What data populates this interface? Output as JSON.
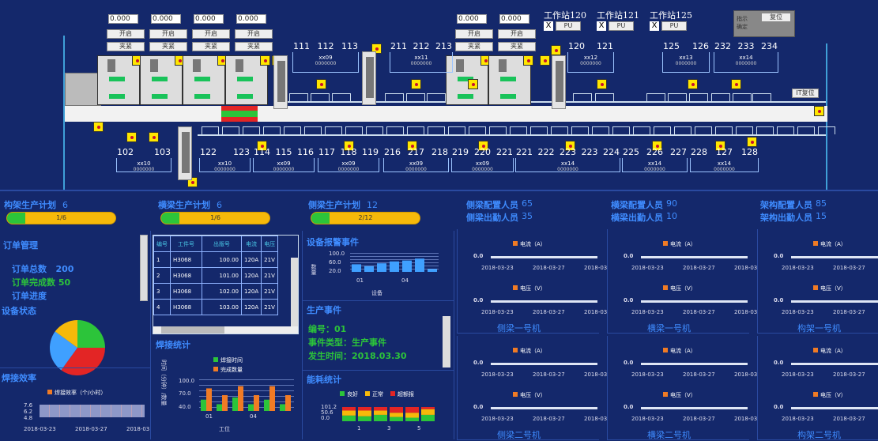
{
  "colors": {
    "background": "#14286b",
    "accent": "#3f8cff",
    "green": "#2cc43a",
    "yellow": "#f6b90a",
    "orange": "#f07b25",
    "red": "#e32525"
  },
  "schematic": {
    "value_inputs": [
      "0.000",
      "0.000",
      "0.000",
      "0.000",
      "0.000",
      "0.000"
    ],
    "open_label": "开启",
    "clamp_label": "夹紧",
    "stations": [
      {
        "label": "工作站120",
        "x": "X",
        "pu": "PU"
      },
      {
        "label": "工作站121",
        "x": "X",
        "pu": "PU"
      },
      {
        "label": "工作站125",
        "x": "X",
        "pu": "PU"
      }
    ],
    "control_box": {
      "indicator": "指示\n确定",
      "reset": "复位"
    },
    "it_reset": "IT复位",
    "upper_groups": [
      {
        "nums": [
          "111",
          "112",
          "113"
        ],
        "tag": "xx09",
        "sub": "0000000"
      },
      {
        "nums": [
          "211",
          "212",
          "213"
        ],
        "tag": "xx11",
        "sub": "0000000"
      },
      {
        "nums": [
          "120",
          "121"
        ],
        "tag": "xx12",
        "sub": "0000000"
      },
      {
        "nums": [
          "125",
          "126"
        ],
        "tag": "xx13",
        "sub": "0000000"
      },
      {
        "nums": [
          "232",
          "233",
          "234"
        ],
        "tag": "xx14",
        "sub": "0000000"
      }
    ],
    "lower_groups": [
      {
        "nums": [
          "102",
          "103"
        ],
        "tag": "xx10",
        "sub": "0000000"
      },
      {
        "nums": [
          "122",
          "123"
        ],
        "tag": "xx10",
        "sub": "0000000"
      },
      {
        "nums": [
          "114",
          "115",
          "116"
        ],
        "tag": "xx09",
        "sub": "0000000"
      },
      {
        "nums": [
          "117",
          "118",
          "119"
        ],
        "tag": "xx09",
        "sub": "0000000"
      },
      {
        "nums": [
          "216",
          "217",
          "218"
        ],
        "tag": "xx09",
        "sub": "0000000"
      },
      {
        "nums": [
          "219",
          "220",
          "221"
        ],
        "tag": "xx09",
        "sub": "0000000"
      },
      {
        "nums": [
          "221",
          "222",
          "223",
          "223",
          "224"
        ],
        "tag": "xx14",
        "sub": "0000000"
      },
      {
        "nums": [
          "225",
          "226",
          "227"
        ],
        "tag": "xx14",
        "sub": "0000000"
      },
      {
        "nums": [
          "228",
          "127",
          "128"
        ],
        "tag": "xx14",
        "sub": "0000000"
      }
    ]
  },
  "plans": [
    {
      "label": "构架生产计划",
      "count": "6",
      "progress": "1/6",
      "fraction": 0.167
    },
    {
      "label": "横梁生产计划",
      "count": "6",
      "progress": "1/6",
      "fraction": 0.167
    },
    {
      "label": "侧梁生产计划",
      "count": "12",
      "progress": "2/12",
      "fraction": 0.167
    }
  ],
  "staff": [
    {
      "cfg_label": "侧梁配置人员",
      "cfg": "65",
      "att_label": "侧梁出勤人员",
      "att": "35"
    },
    {
      "cfg_label": "横梁配置人员",
      "cfg": "90",
      "att_label": "横梁出勤人员",
      "att": "10"
    },
    {
      "cfg_label": "架构配置人员",
      "cfg": "85",
      "att_label": "架构出勤人员",
      "att": "15"
    }
  ],
  "orders": {
    "title": "订单管理",
    "total_label": "订单总数",
    "total": "200",
    "done_label": "订单完成数",
    "done": "50",
    "progress_label": "订单进度"
  },
  "device_status": {
    "title": "设备状态",
    "slices": [
      {
        "color": "#2cc43a",
        "value": 25
      },
      {
        "color": "#e32525",
        "value": 35
      },
      {
        "color": "#3fa0ff",
        "value": 25
      },
      {
        "color": "#f6b90a",
        "value": 15
      }
    ]
  },
  "weld_eff": {
    "title": "焊接效率",
    "legend": "焊接效率（个/小时）",
    "yticks": [
      "7.6",
      "6.2",
      "4.8"
    ],
    "xticks": [
      "2018-03-23",
      "2018-03-27",
      "2018-03"
    ]
  },
  "table": {
    "headers": [
      "编号",
      "工件号",
      "出版号",
      "电流",
      "电压"
    ],
    "rows": [
      [
        "1",
        "H3068",
        "100.00",
        "120A",
        "21V"
      ],
      [
        "2",
        "H3068",
        "101.00",
        "120A",
        "21V"
      ],
      [
        "3",
        "H3068",
        "102.00",
        "120A",
        "21V"
      ],
      [
        "4",
        "H3068",
        "103.00",
        "120A",
        "21V"
      ]
    ]
  },
  "weld_stats": {
    "title": "焊接统计",
    "legend": [
      "焊接时间",
      "完成数量"
    ],
    "ylabel": "时间（分钟）/数量",
    "yticks": [
      "100.0",
      "70.0",
      "40.0"
    ],
    "xticks": [
      "01",
      "04"
    ],
    "xlabel": "工位",
    "chart_data": {
      "type": "bar",
      "categories": [
        "01",
        "02",
        "03",
        "04",
        "05",
        "06"
      ],
      "series": [
        {
          "name": "焊接时间",
          "values": [
            55,
            45,
            60,
            45,
            55,
            45
          ]
        },
        {
          "name": "完成数量",
          "values": [
            80,
            65,
            85,
            65,
            85,
            65
          ]
        }
      ],
      "ylim": [
        30,
        100
      ]
    }
  },
  "alarm": {
    "title": "设备报警事件",
    "ylabel": "数量",
    "yticks": [
      "100.0",
      "60.0",
      "20.0"
    ],
    "xticks": [
      "01",
      "04"
    ],
    "xlabel": "设备",
    "chart_data": {
      "type": "bar",
      "categories": [
        "01",
        "02",
        "03",
        "04",
        "05",
        "06",
        "07"
      ],
      "values": [
        40,
        30,
        45,
        55,
        60,
        70,
        15
      ],
      "ylim": [
        0,
        100
      ]
    }
  },
  "prod_event": {
    "title": "生产事件",
    "lines": [
      "编号：01",
      "事件类型：生产事件",
      "发生时间：2018.03.30"
    ]
  },
  "energy": {
    "title": "能耗统计",
    "legend": [
      "良好",
      "正常",
      "超额报"
    ],
    "yticks": [
      "101.2",
      "50.6",
      "0.0"
    ],
    "xticks": [
      "1",
      "3",
      "5"
    ]
  },
  "machines": [
    {
      "name": "侧梁一号机"
    },
    {
      "name": "横梁一号机"
    },
    {
      "name": "构架一号机"
    },
    {
      "name": "侧梁二号机"
    },
    {
      "name": "横梁二号机"
    },
    {
      "name": "构架二号机"
    }
  ],
  "mini": {
    "current": "电流（A）",
    "voltage": "电压（V）",
    "ytick": "0.0",
    "dates": [
      "2018-03-23",
      "2018-03-27",
      "2018-03"
    ]
  }
}
